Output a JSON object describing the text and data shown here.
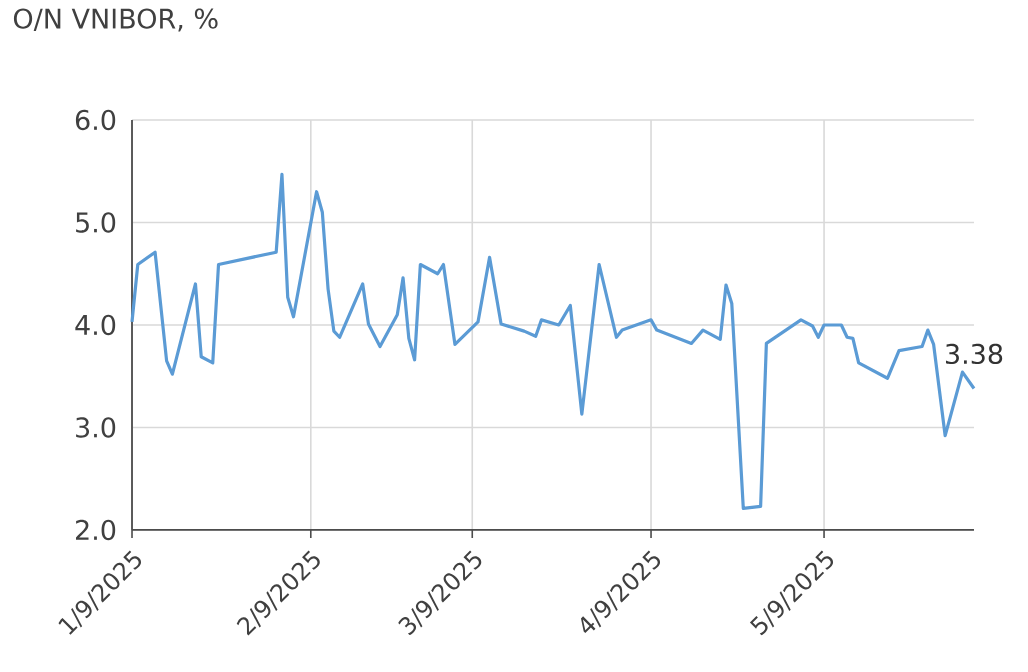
{
  "chart_data": {
    "type": "line",
    "title": "O/N VNIBOR, %",
    "x": [
      "2025-01-09",
      "2025-01-10",
      "2025-01-13",
      "2025-01-15",
      "2025-01-16",
      "2025-01-20",
      "2025-01-21",
      "2025-01-23",
      "2025-01-24",
      "2025-02-03",
      "2025-02-04",
      "2025-02-05",
      "2025-02-06",
      "2025-02-10",
      "2025-02-11",
      "2025-02-12",
      "2025-02-13",
      "2025-02-14",
      "2025-02-18",
      "2025-02-19",
      "2025-02-21",
      "2025-02-24",
      "2025-02-25",
      "2025-02-26",
      "2025-02-27",
      "2025-02-28",
      "2025-03-03",
      "2025-03-04",
      "2025-03-06",
      "2025-03-10",
      "2025-03-12",
      "2025-03-14",
      "2025-03-18",
      "2025-03-20",
      "2025-03-21",
      "2025-03-24",
      "2025-03-26",
      "2025-03-28",
      "2025-03-31",
      "2025-04-03",
      "2025-04-04",
      "2025-04-09",
      "2025-04-10",
      "2025-04-16",
      "2025-04-18",
      "2025-04-21",
      "2025-04-22",
      "2025-04-23",
      "2025-04-25",
      "2025-04-28",
      "2025-04-29",
      "2025-05-05",
      "2025-05-07",
      "2025-05-08",
      "2025-05-09",
      "2025-05-12",
      "2025-05-13",
      "2025-05-14",
      "2025-05-15",
      "2025-05-20",
      "2025-05-22",
      "2025-05-26",
      "2025-05-27",
      "2025-05-28",
      "2025-05-30",
      "2025-06-02",
      "2025-06-04"
    ],
    "values": [
      4.03,
      4.59,
      4.71,
      3.65,
      3.52,
      4.4,
      3.69,
      3.63,
      4.59,
      4.71,
      5.47,
      4.27,
      4.08,
      5.3,
      5.1,
      4.35,
      3.94,
      3.88,
      4.4,
      4.01,
      3.79,
      4.1,
      4.46,
      3.87,
      3.66,
      4.59,
      4.5,
      4.59,
      3.81,
      4.03,
      4.66,
      4.01,
      3.94,
      3.89,
      4.05,
      4.0,
      4.19,
      3.13,
      4.59,
      3.88,
      3.95,
      4.05,
      3.95,
      3.82,
      3.95,
      3.86,
      4.39,
      4.21,
      2.21,
      2.23,
      3.82,
      4.05,
      3.99,
      3.88,
      4.0,
      4.0,
      3.88,
      3.87,
      3.63,
      3.48,
      3.75,
      3.79,
      3.95,
      3.81,
      2.92,
      3.54,
      3.38
    ],
    "color": "#5b9bd5",
    "xlim": [
      "2025-01-09",
      "2025-06-04"
    ],
    "xticks": [
      {
        "value": "2025-01-09",
        "label": "1/9/2025"
      },
      {
        "value": "2025-02-09",
        "label": "2/9/2025"
      },
      {
        "value": "2025-03-09",
        "label": "3/9/2025"
      },
      {
        "value": "2025-04-09",
        "label": "4/9/2025"
      },
      {
        "value": "2025-05-09",
        "label": "5/9/2025"
      }
    ],
    "ylim": [
      2,
      6
    ],
    "yticks": [
      {
        "value": 2,
        "label": "2.0"
      },
      {
        "value": 3,
        "label": "3.0"
      },
      {
        "value": 4,
        "label": "4.0"
      },
      {
        "value": 5,
        "label": "5.0"
      },
      {
        "value": 6,
        "label": "6.0"
      }
    ],
    "grid": true,
    "annotations": [
      {
        "text": "3.38",
        "x": "2025-06-04",
        "y": 3.38
      }
    ]
  }
}
